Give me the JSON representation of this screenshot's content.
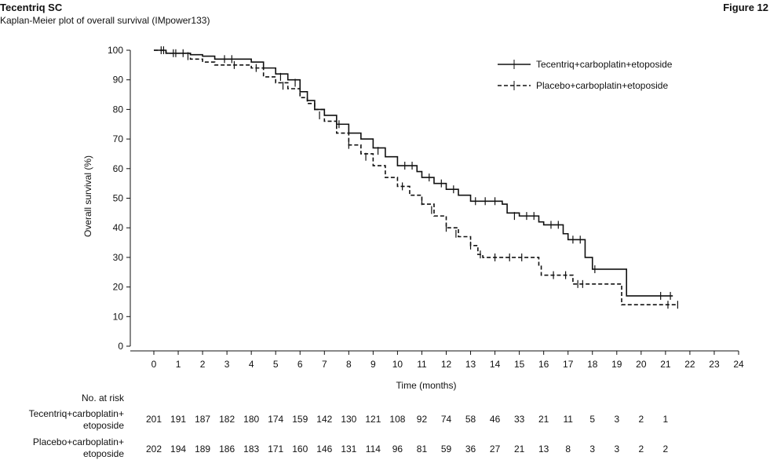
{
  "header": {
    "product": "Tecentriq SC",
    "subtitle": "Kaplan-Meier plot of overall survival (IMpower133)",
    "figure": "Figure 12"
  },
  "chart_data": {
    "type": "line",
    "title": "Kaplan-Meier plot of overall survival (IMpower133)",
    "xlabel": "Time (months)",
    "ylabel": "Overall survival (%)",
    "xlim": [
      0,
      24
    ],
    "ylim": [
      0,
      100
    ],
    "xticks": [
      0,
      1,
      2,
      3,
      4,
      5,
      6,
      7,
      8,
      9,
      10,
      11,
      12,
      13,
      14,
      15,
      16,
      17,
      18,
      19,
      20,
      21,
      22,
      23,
      24
    ],
    "yticks": [
      0,
      10,
      20,
      30,
      40,
      50,
      60,
      70,
      80,
      90,
      100
    ],
    "legend_position": "top-right",
    "series": [
      {
        "name": "Tecentriq+carboplatin+etoposide",
        "style": "solid",
        "steps": [
          [
            0,
            100
          ],
          [
            0.5,
            99
          ],
          [
            1.5,
            98.5
          ],
          [
            2,
            98
          ],
          [
            2.5,
            97
          ],
          [
            4,
            96
          ],
          [
            4.5,
            94
          ],
          [
            5,
            92
          ],
          [
            5.5,
            90
          ],
          [
            6,
            86
          ],
          [
            6.3,
            83
          ],
          [
            6.6,
            80
          ],
          [
            7,
            78
          ],
          [
            7.5,
            75
          ],
          [
            8,
            72
          ],
          [
            8.5,
            70
          ],
          [
            9,
            67
          ],
          [
            9.5,
            64
          ],
          [
            10,
            61
          ],
          [
            10.8,
            59
          ],
          [
            11,
            57
          ],
          [
            11.5,
            55
          ],
          [
            12,
            53
          ],
          [
            12.5,
            51
          ],
          [
            13,
            49
          ],
          [
            14.3,
            48
          ],
          [
            14.5,
            45
          ],
          [
            15,
            44
          ],
          [
            15.8,
            42
          ],
          [
            16,
            41
          ],
          [
            16.8,
            38
          ],
          [
            17,
            36
          ],
          [
            17.7,
            30
          ],
          [
            18,
            26
          ],
          [
            19.4,
            17
          ],
          [
            21.3,
            17
          ]
        ],
        "censored": [
          [
            0.3,
            100
          ],
          [
            0.8,
            99
          ],
          [
            1.2,
            99
          ],
          [
            2.9,
            97
          ],
          [
            3.2,
            97
          ],
          [
            5.2,
            91
          ],
          [
            5.8,
            89
          ],
          [
            7.6,
            75
          ],
          [
            9.2,
            66
          ],
          [
            10.3,
            61
          ],
          [
            10.6,
            61
          ],
          [
            11.3,
            57
          ],
          [
            11.8,
            55
          ],
          [
            12.3,
            53
          ],
          [
            13.2,
            49
          ],
          [
            13.6,
            49
          ],
          [
            14,
            49
          ],
          [
            14.8,
            44
          ],
          [
            15.3,
            44
          ],
          [
            15.6,
            44
          ],
          [
            16.3,
            41
          ],
          [
            16.6,
            41
          ],
          [
            17.2,
            36
          ],
          [
            17.5,
            36
          ],
          [
            18.1,
            26
          ],
          [
            20.8,
            17
          ],
          [
            21.2,
            17
          ]
        ]
      },
      {
        "name": "Placebo+carboplatin+etoposide",
        "style": "dashed",
        "steps": [
          [
            0,
            100
          ],
          [
            0.5,
            99
          ],
          [
            1.5,
            97
          ],
          [
            2,
            96
          ],
          [
            2.5,
            95
          ],
          [
            4,
            94
          ],
          [
            4.5,
            91
          ],
          [
            5,
            89
          ],
          [
            5.5,
            87
          ],
          [
            6,
            84
          ],
          [
            6.3,
            82
          ],
          [
            6.6,
            80
          ],
          [
            7,
            76
          ],
          [
            7.5,
            72
          ],
          [
            8,
            68
          ],
          [
            8.5,
            65
          ],
          [
            9,
            61
          ],
          [
            9.5,
            57
          ],
          [
            10,
            54
          ],
          [
            10.5,
            51
          ],
          [
            11,
            48
          ],
          [
            11.5,
            44
          ],
          [
            12,
            40
          ],
          [
            12.5,
            37
          ],
          [
            13,
            34
          ],
          [
            13.3,
            31
          ],
          [
            13.5,
            30
          ],
          [
            15.8,
            27
          ],
          [
            15.9,
            24
          ],
          [
            17.2,
            21
          ],
          [
            19.2,
            14
          ],
          [
            21.5,
            14
          ]
        ],
        "censored": [
          [
            0.4,
            100
          ],
          [
            0.9,
            99
          ],
          [
            1.4,
            98
          ],
          [
            3.3,
            95
          ],
          [
            4.2,
            94
          ],
          [
            5.3,
            88
          ],
          [
            6.8,
            78
          ],
          [
            8,
            68
          ],
          [
            8.7,
            64
          ],
          [
            10.2,
            54
          ],
          [
            11,
            49
          ],
          [
            11.4,
            46
          ],
          [
            12,
            40
          ],
          [
            12.4,
            38
          ],
          [
            13,
            34
          ],
          [
            13.4,
            31
          ],
          [
            14,
            30
          ],
          [
            14.6,
            30
          ],
          [
            15.1,
            30
          ],
          [
            16.4,
            24
          ],
          [
            16.9,
            24
          ],
          [
            17.4,
            21
          ],
          [
            17.6,
            21
          ],
          [
            21.1,
            14
          ],
          [
            21.5,
            14
          ]
        ]
      }
    ],
    "risk_table": {
      "title": "No. at risk",
      "rows": [
        {
          "label1": "Tecentriq+carboplatin+",
          "label2": "etoposide",
          "values": [
            201,
            191,
            187,
            182,
            180,
            174,
            159,
            142,
            130,
            121,
            108,
            92,
            74,
            58,
            46,
            33,
            21,
            11,
            5,
            3,
            2,
            1
          ]
        },
        {
          "label1": "Placebo+carboplatin+",
          "label2": "etoposide",
          "values": [
            202,
            194,
            189,
            186,
            183,
            171,
            160,
            146,
            131,
            114,
            96,
            81,
            59,
            36,
            27,
            21,
            13,
            8,
            3,
            3,
            2,
            2
          ]
        }
      ]
    }
  }
}
